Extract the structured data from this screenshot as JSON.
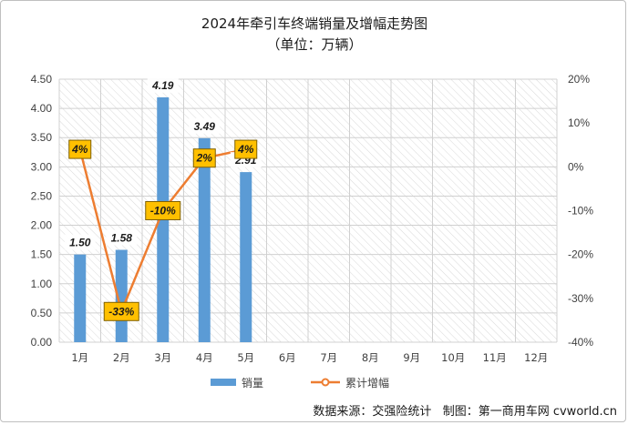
{
  "chart_data": {
    "type": "bar",
    "title": "2024年牵引车终端销量及增幅走势图",
    "subtitle": "（单位：万辆）",
    "categories": [
      "1月",
      "2月",
      "3月",
      "4月",
      "5月",
      "6月",
      "7月",
      "8月",
      "9月",
      "10月",
      "11月",
      "12月"
    ],
    "series": [
      {
        "name": "销量",
        "type": "bar",
        "axis": "left",
        "color": "#5b9bd5",
        "values": [
          1.5,
          1.58,
          4.19,
          3.49,
          2.91,
          null,
          null,
          null,
          null,
          null,
          null,
          null
        ],
        "labels": [
          "1.50",
          "1.58",
          "4.19",
          "3.49",
          "2.91"
        ]
      },
      {
        "name": "累计增幅",
        "type": "line",
        "axis": "right",
        "color": "#ed7d31",
        "values": [
          4,
          -33,
          -10,
          2,
          4,
          null,
          null,
          null,
          null,
          null,
          null,
          null
        ],
        "labels": [
          "4%",
          "-33%",
          "-10%",
          "2%",
          "4%"
        ]
      }
    ],
    "ylim_left": [
      0,
      4.5
    ],
    "yticks_left": [
      "0.00",
      "0.50",
      "1.00",
      "1.50",
      "2.00",
      "2.50",
      "3.00",
      "3.50",
      "4.00",
      "4.50"
    ],
    "ylim_right": [
      -40,
      20
    ],
    "yticks_right": [
      "-40%",
      "-30%",
      "-20%",
      "-10%",
      "0%",
      "10%",
      "20%"
    ],
    "grid": true,
    "legend_position": "bottom"
  },
  "source_text": "数据来源：交强险统计   制图：第一商用车网 cvworld.cn"
}
